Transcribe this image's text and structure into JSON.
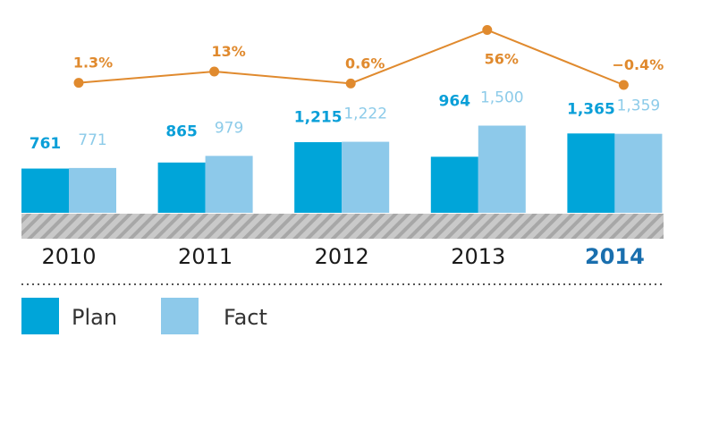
{
  "colors": {
    "plan": "#00a5d9",
    "fact": "#8dc9ea",
    "line": "#e08a2e",
    "axis_band": "#b5b5b5",
    "highlight_year": "#1a6fae"
  },
  "chart_data": {
    "type": "bar",
    "categories": [
      "2010",
      "2011",
      "2012",
      "2013",
      "2014"
    ],
    "highlight_category": "2014",
    "series": [
      {
        "name": "Plan",
        "values": [
          761,
          865,
          1215,
          964,
          1365
        ],
        "labels": [
          "761",
          "865",
          "1,215",
          "964",
          "1,365"
        ]
      },
      {
        "name": "Fact",
        "values": [
          771,
          979,
          1222,
          1500,
          1359
        ],
        "labels": [
          "771",
          "979",
          "1,222",
          "1,500",
          "1,359"
        ]
      }
    ],
    "line_series": {
      "values": [
        1.3,
        13,
        0.6,
        56,
        -0.4
      ],
      "labels": [
        "1.3%",
        "13%",
        "0.6%",
        "56%",
        "−0.4%"
      ]
    },
    "legend": {
      "position": "bottom-left",
      "items": [
        {
          "label": "Plan",
          "color": "#00a5d9"
        },
        {
          "label": "Fact",
          "color": "#8dc9ea"
        }
      ]
    }
  }
}
